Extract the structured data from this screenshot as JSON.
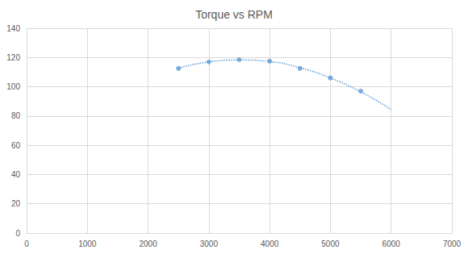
{
  "chart_data": {
    "type": "scatter",
    "title": "Torque vs RPM",
    "x": [
      2500,
      3000,
      3500,
      4000,
      4500,
      5000,
      5500,
      6000
    ],
    "series": [
      {
        "type": "scatter",
        "color": "#5b9bd5",
        "marker": "circle",
        "values": [
          112.5,
          117,
          118.5,
          117.5,
          112.5,
          106,
          97,
          null
        ]
      },
      {
        "type": "line",
        "color": "#5b9bd5",
        "marker": "none",
        "line_style": "dotted",
        "values": [
          112.7,
          117,
          118.3,
          117.2,
          113,
          106,
          96.5,
          84.5
        ]
      }
    ],
    "xlim": [
      0,
      7000
    ],
    "xticks": [
      0,
      1000,
      2000,
      3000,
      4000,
      5000,
      6000,
      7000
    ],
    "ylim": [
      0,
      140
    ],
    "yticks": [
      0,
      20,
      40,
      60,
      80,
      100,
      120,
      140
    ],
    "grid": true
  }
}
